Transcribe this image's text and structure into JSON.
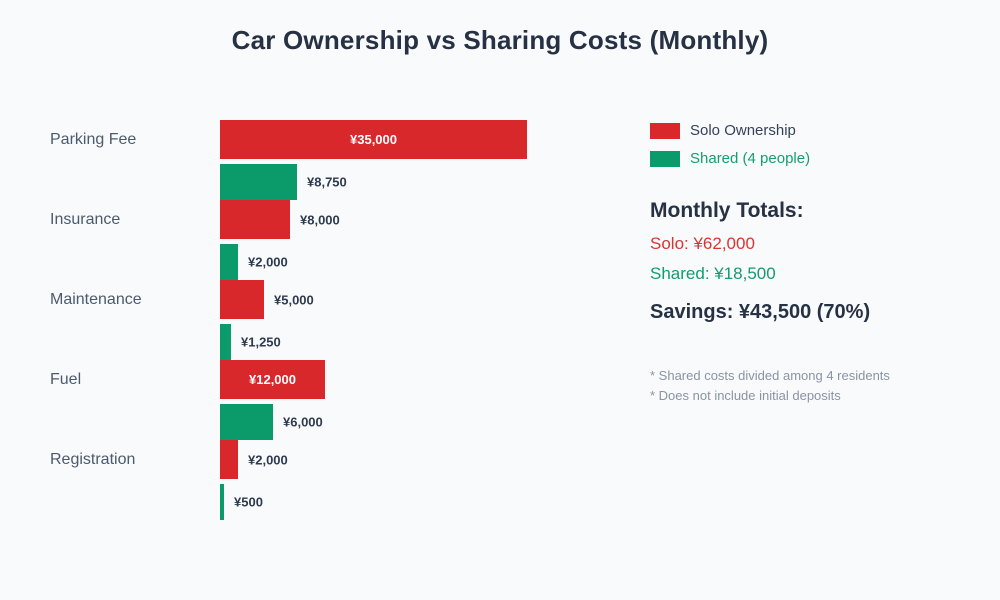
{
  "title": "Car Ownership vs Sharing Costs (Monthly)",
  "colors": {
    "background": "#f8fafc",
    "solo_bar": "#d8282b",
    "shared_bar": "#0b9b6b",
    "title_text": "#273144",
    "category_text": "#4d5a6d",
    "value_text": "#2e3a4e",
    "inside_value_text": "#ffffff",
    "footnote_text": "#8b93a3"
  },
  "legend": {
    "items": [
      {
        "name": "solo",
        "label": "Solo Ownership",
        "swatch_color": "#d8282b",
        "text_color": "#36425a"
      },
      {
        "name": "shared",
        "label": "Shared (4 people)",
        "swatch_color": "#0b9b6b",
        "text_color": "#15a06b"
      }
    ]
  },
  "totals": {
    "heading": "Monthly Totals:",
    "solo_line": "Solo: ¥62,000",
    "shared_line": "Shared: ¥18,500",
    "savings_line": "Savings: ¥43,500 (70%)"
  },
  "footnotes": [
    "* Shared costs divided among 4 residents",
    "* Does not include initial deposits"
  ],
  "chart_data": {
    "type": "bar",
    "orientation": "horizontal",
    "title": "Car Ownership vs Sharing Costs (Monthly)",
    "categories": [
      "Parking Fee",
      "Insurance",
      "Maintenance",
      "Fuel",
      "Registration"
    ],
    "series": [
      {
        "name": "Solo Ownership",
        "color": "#d8282b",
        "values": [
          35000,
          8000,
          5000,
          12000,
          2000
        ],
        "labels": [
          "¥35,000",
          "¥8,000",
          "¥5,000",
          "¥12,000",
          "¥2,000"
        ]
      },
      {
        "name": "Shared (4 people)",
        "color": "#0b9b6b",
        "values": [
          8750,
          2000,
          1250,
          6000,
          500
        ],
        "labels": [
          "¥8,750",
          "¥2,000",
          "¥1,250",
          "¥6,000",
          "¥500"
        ]
      }
    ],
    "x_max_value": 35000,
    "currency": "¥",
    "grid": false,
    "axis_labels_visible": false,
    "legend_position": "right"
  }
}
